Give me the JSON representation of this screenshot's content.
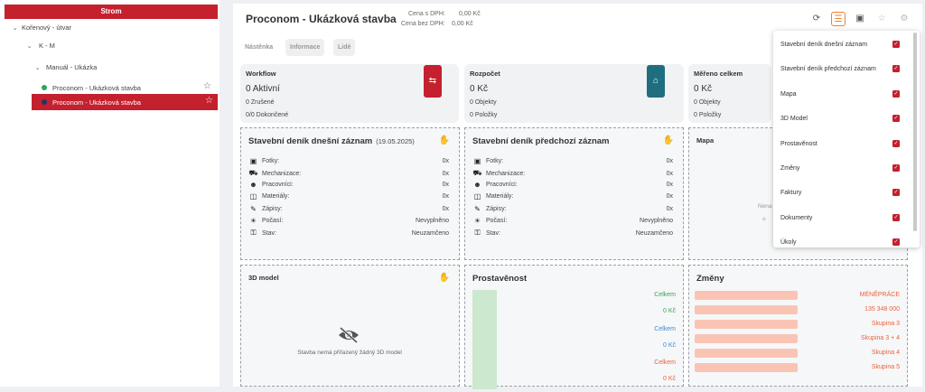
{
  "tree": {
    "header": "Strom",
    "nodes": [
      {
        "label": "Kořenový - útvar"
      },
      {
        "label": "K - M"
      },
      {
        "label": "Manuál - Ukázka"
      },
      {
        "label": "Proconom - Ukázková stavba"
      },
      {
        "label": "Proconom - Ukázková stavba"
      }
    ]
  },
  "header": {
    "title": "Proconom - Ukázková stavba",
    "price_label": "Cena s DPH:",
    "price_value": "0,00 Kč",
    "price_novat_label": "Cena bez DPH:",
    "price_novat_value": "0,00 Kč"
  },
  "tabs": [
    "Nástěnka",
    "Informace",
    "Lidé"
  ],
  "cards": {
    "workflow": {
      "title": "Workflow",
      "main": "0 Aktivní",
      "line1": "0 Zrušené",
      "line2": "0/0 Dokončené"
    },
    "rozpocet": {
      "title": "Rozpočet",
      "main": "0 Kč",
      "line1": "0 Objekty",
      "line2": "0 Položky"
    },
    "mereno": {
      "title": "Měřeno celkem",
      "main": "0 Kč",
      "line1": "0 Objekty",
      "line2": "0 Položky"
    }
  },
  "diary_today": {
    "title": "Stavební deník dnešní záznam",
    "date": "(19.05.2025)",
    "rows": [
      {
        "label": "Fotky:",
        "value": "0x"
      },
      {
        "label": "Mechanizace:",
        "value": "0x"
      },
      {
        "label": "Pracovníci:",
        "value": "0x"
      },
      {
        "label": "Materiály:",
        "value": "0x"
      },
      {
        "label": "Zápisy:",
        "value": "0x"
      },
      {
        "label": "Počasí:",
        "value": "Nevyplněno"
      },
      {
        "label": "Stav:",
        "value": "Neuzamčeno"
      }
    ]
  },
  "diary_prev": {
    "title": "Stavební deník předchozí záznam",
    "rows": [
      {
        "label": "Fotky:",
        "value": "0x"
      },
      {
        "label": "Mechanizace:",
        "value": "0x"
      },
      {
        "label": "Pracovníci:",
        "value": "0x"
      },
      {
        "label": "Materiály:",
        "value": "0x"
      },
      {
        "label": "Zápisy:",
        "value": "0x"
      },
      {
        "label": "Počasí:",
        "value": "Nevyplněno"
      },
      {
        "label": "Stav:",
        "value": "Neuzamčeno"
      }
    ]
  },
  "mapa": {
    "title": "Mapa",
    "partial": "Nena"
  },
  "model3d": {
    "title": "3D model",
    "empty_text": "Stavba nemá přiřazený žádný 3D model"
  },
  "prostavenost": {
    "title": "Prostavěnost",
    "labels": [
      {
        "text": "Celkem",
        "color": "#3aa35a"
      },
      {
        "text": "0 Kč",
        "color": "#3aa35a"
      },
      {
        "text": "Celkem",
        "color": "#3b8ed8"
      },
      {
        "text": "0 Kč",
        "color": "#3b8ed8"
      },
      {
        "text": "Celkem",
        "color": "#e8643c"
      },
      {
        "text": "0 Kč",
        "color": "#e8643c"
      }
    ]
  },
  "zmeny": {
    "title": "Změny",
    "labels": [
      "MÉNĚPRÁCE",
      "135 348 000",
      "Skupina 3",
      "Skupina 3 + 4",
      "Skupina 4",
      "Skupina 5"
    ]
  },
  "dropdown": {
    "items": [
      "Stavební deník dnešní záznam",
      "Stavební deník předchozí záznam",
      "Mapa",
      "3D Model",
      "Prostavěnost",
      "Změny",
      "Faktury",
      "Dokumenty",
      "Úkoly"
    ]
  },
  "colors": {
    "brand": "#c4202e",
    "teal": "#1e6e80",
    "orange": "#f08030"
  }
}
